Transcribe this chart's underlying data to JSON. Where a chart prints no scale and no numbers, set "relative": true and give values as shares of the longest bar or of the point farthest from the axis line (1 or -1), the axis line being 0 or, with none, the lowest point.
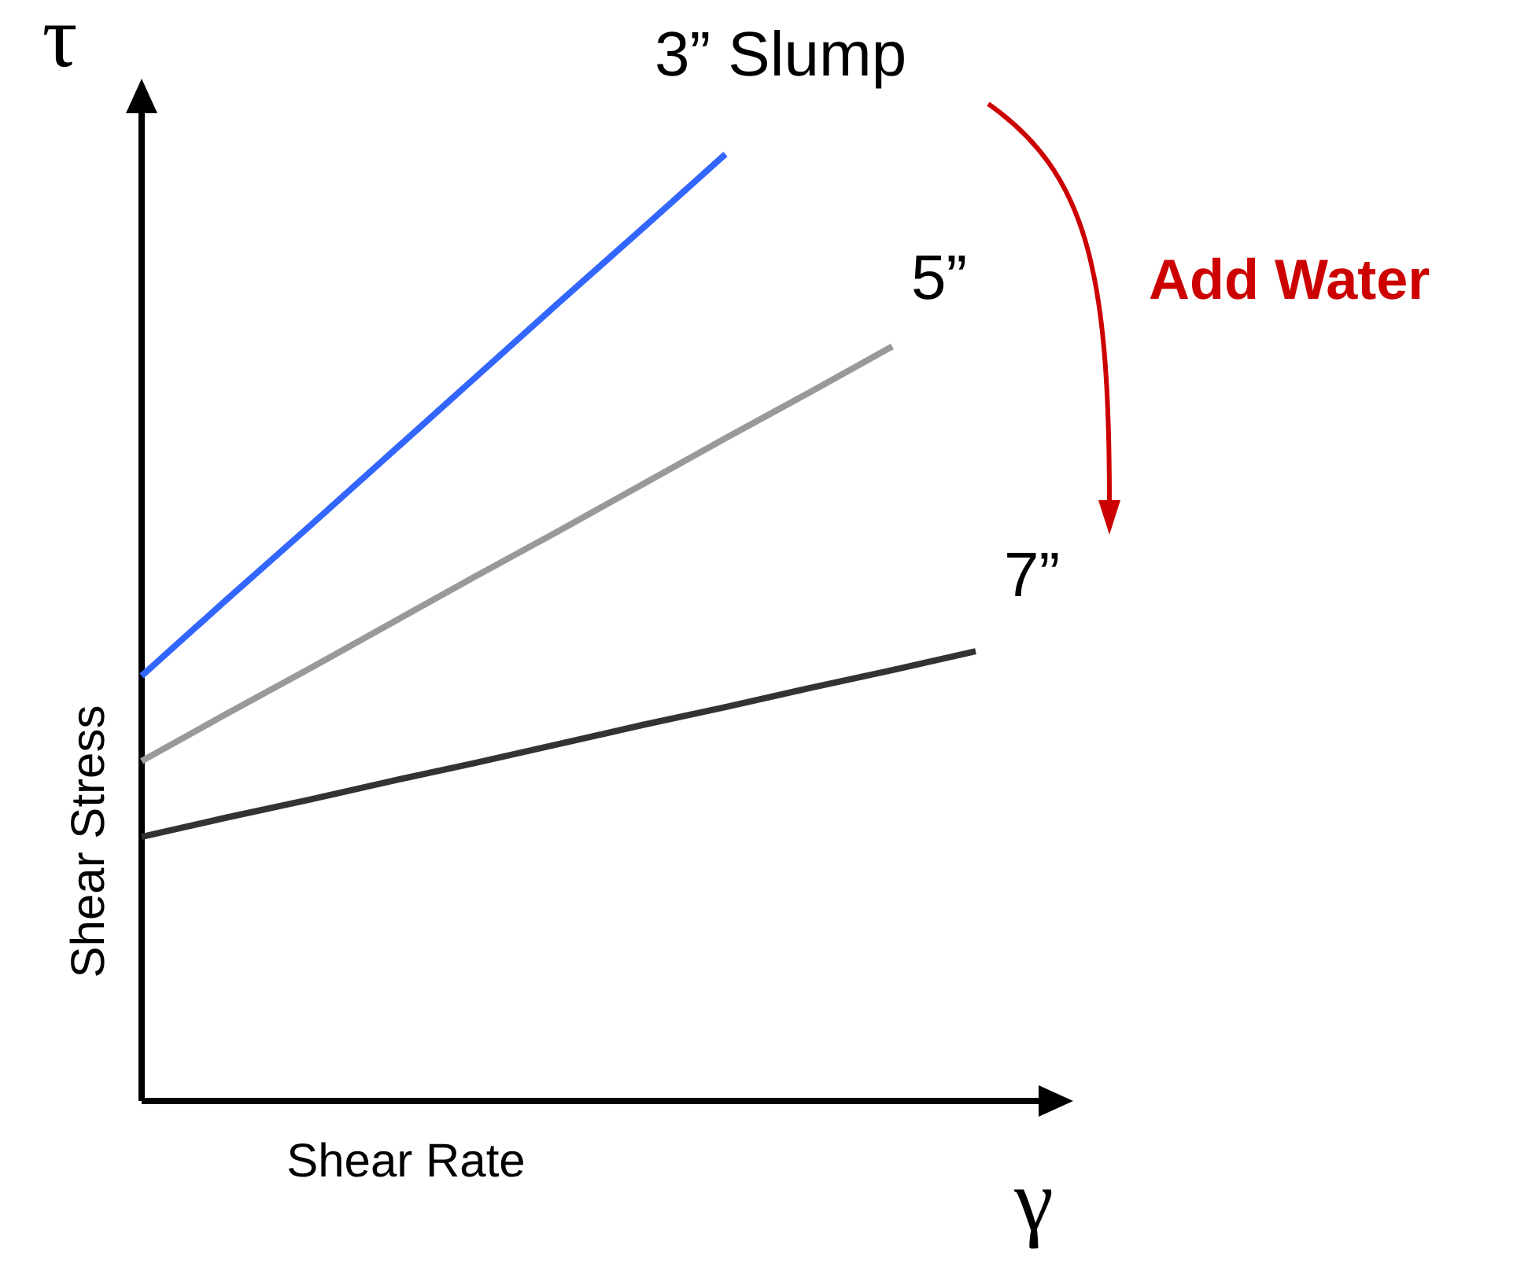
{
  "chart_data": {
    "type": "line",
    "relative": true,
    "xlabel": "Shear Rate",
    "ylabel": "Shear Stress",
    "legend": false,
    "marker": "none",
    "line_style": "solid",
    "categories": [
      null,
      null,
      null,
      null,
      null,
      null,
      null,
      null,
      null,
      null,
      null
    ],
    "series": [
      {
        "name": "3” Slump",
        "color": "#3366ff",
        "values": [
          0.449,
          0.528,
          0.606,
          0.685,
          0.764,
          0.843,
          0.921,
          1,
          null,
          null,
          null
        ]
      },
      {
        "name": "5”",
        "color": "#999999",
        "values": [
          0.359,
          0.408,
          0.456,
          0.505,
          0.554,
          0.602,
          0.651,
          0.7,
          0.748,
          0.797,
          null
        ]
      },
      {
        "name": "7”",
        "color": "#333333",
        "values": [
          0.279,
          0.299,
          0.318,
          0.338,
          0.357,
          0.377,
          0.397,
          0.416,
          0.436,
          0.455,
          0.475
        ]
      }
    ],
    "annotations": [
      "τ",
      "γ",
      "Add Water"
    ]
  }
}
